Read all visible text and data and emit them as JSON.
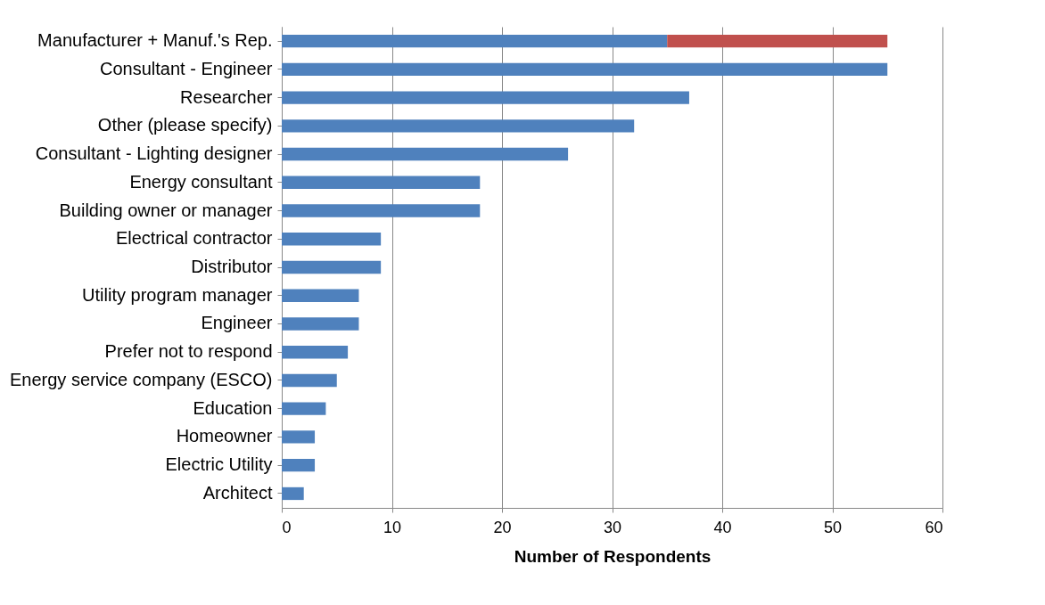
{
  "chart_data": {
    "type": "bar",
    "orientation": "horizontal",
    "stacked": true,
    "xlabel": "Number of Respondents",
    "categories": [
      "Manufacturer + Manuf.'s Rep.",
      "Consultant - Engineer",
      "Researcher",
      "Other (please specify)",
      "Consultant - Lighting designer",
      "Energy consultant",
      "Building owner or manager",
      "Electrical contractor",
      "Distributor",
      "Utility program manager",
      "Engineer",
      "Prefer not to respond",
      "Energy service company (ESCO)",
      "Education",
      "Homeowner",
      "Electric Utility",
      "Architect"
    ],
    "series": [
      {
        "color": "#4f81bd",
        "values": [
          35,
          55,
          37,
          32,
          26,
          18,
          18,
          9,
          9,
          7,
          7,
          6,
          5,
          4,
          3,
          3,
          2
        ]
      },
      {
        "color": "#c0504d",
        "values": [
          20,
          null,
          null,
          null,
          null,
          null,
          null,
          null,
          null,
          null,
          null,
          null,
          null,
          null,
          null,
          null,
          null
        ]
      }
    ],
    "xlim": [
      0,
      60
    ],
    "xticks": [
      0,
      10,
      20,
      30,
      40,
      50,
      60
    ],
    "grid": "x",
    "legend": false
  }
}
